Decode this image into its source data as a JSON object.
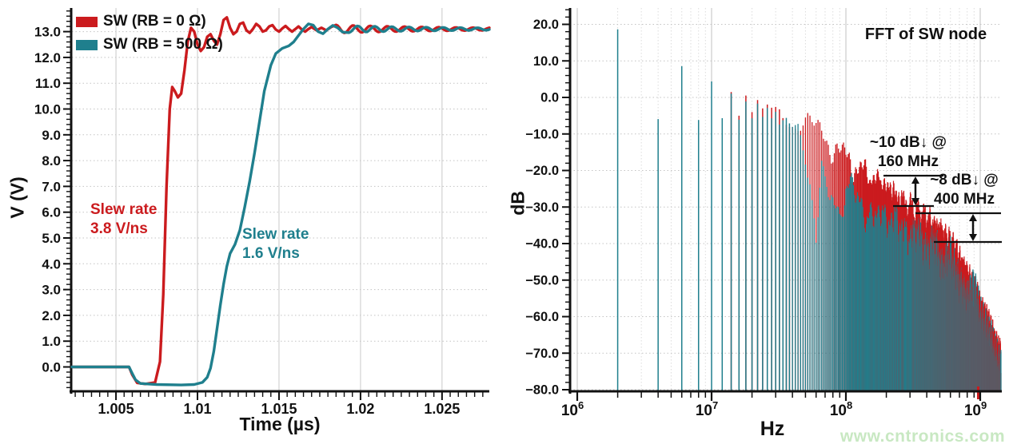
{
  "page": {
    "background": "#ffffff",
    "watermark": {
      "text": "www.cntronics.com",
      "color": "#c8e8c2"
    }
  },
  "chart_data": {
    "left": {
      "type": "line",
      "xlabel": "Time (µs)",
      "ylabel": "V (V)",
      "xlim": [
        1.0023,
        1.0279
      ],
      "ylim": [
        -0.95,
        13.9
      ],
      "x_ticks": [
        {
          "v": 1.005,
          "label": "1.005"
        },
        {
          "v": 1.01,
          "label": "1.01"
        },
        {
          "v": 1.015,
          "label": "1.015"
        },
        {
          "v": 1.02,
          "label": "1.02"
        },
        {
          "v": 1.025,
          "label": "1.025"
        }
      ],
      "y_ticks": [
        {
          "v": 0,
          "label": "0.0"
        },
        {
          "v": 1,
          "label": "1.0"
        },
        {
          "v": 2,
          "label": "2.0"
        },
        {
          "v": 3,
          "label": "3.0"
        },
        {
          "v": 4,
          "label": "4.0"
        },
        {
          "v": 5,
          "label": "5.0"
        },
        {
          "v": 6,
          "label": "6.0"
        },
        {
          "v": 7,
          "label": "7.0"
        },
        {
          "v": 8,
          "label": "8.0"
        },
        {
          "v": 9,
          "label": "9.0"
        },
        {
          "v": 10,
          "label": "10.0"
        },
        {
          "v": 11,
          "label": "11.0"
        },
        {
          "v": 12,
          "label": "12.0"
        },
        {
          "v": 13,
          "label": "13.0"
        }
      ],
      "grid": {
        "h_dotted_step_v": 1.0,
        "v_solid_at_major_ticks": true
      },
      "series": [
        {
          "name": "SW (RB = 0 Ω)",
          "color": "#cb1b1e",
          "slew_annotation": {
            "lines": [
              "Slew rate",
              "3.8 V/ns"
            ]
          },
          "points": [
            [
              1.0023,
              0
            ],
            [
              1.0058,
              0
            ],
            [
              1.006,
              -0.3
            ],
            [
              1.0063,
              -0.62
            ],
            [
              1.0068,
              -0.66
            ],
            [
              1.0074,
              -0.6
            ],
            [
              1.0077,
              0.2
            ],
            [
              1.0079,
              2.8
            ],
            [
              1.0081,
              7.0
            ],
            [
              1.0083,
              10.0
            ],
            [
              1.00845,
              10.85
            ],
            [
              1.0086,
              10.7
            ],
            [
              1.0088,
              10.45
            ],
            [
              1.009,
              10.6
            ],
            [
              1.0092,
              11.5
            ],
            [
              1.0094,
              12.6
            ],
            [
              1.0096,
              13.15
            ],
            [
              1.0098,
              13.0
            ],
            [
              1.01,
              12.5
            ],
            [
              1.0102,
              12.25
            ],
            [
              1.0104,
              12.4
            ],
            [
              1.0106,
              12.8
            ],
            [
              1.0108,
              12.9
            ],
            [
              1.011,
              12.65
            ],
            [
              1.0112,
              12.5
            ],
            [
              1.0114,
              12.9
            ],
            [
              1.0116,
              13.45
            ],
            [
              1.0118,
              13.55
            ],
            [
              1.012,
              13.15
            ],
            [
              1.0122,
              12.9
            ],
            [
              1.0124,
              13.0
            ],
            [
              1.0126,
              13.3
            ],
            [
              1.0128,
              13.35
            ],
            [
              1.013,
              13.05
            ],
            [
              1.0132,
              12.95
            ],
            [
              1.0134,
              13.1
            ],
            [
              1.0136,
              13.3
            ],
            [
              1.0138,
              13.2
            ],
            [
              1.014,
              13.0
            ],
            [
              1.0142,
              13.05
            ],
            [
              1.0144,
              13.2
            ],
            [
              1.0146,
              13.25
            ],
            [
              1.0148,
              13.08
            ],
            [
              1.015,
              13.0
            ],
            [
              1.0152,
              13.12
            ],
            [
              1.0154,
              13.22
            ],
            [
              1.0156,
              13.1
            ],
            [
              1.0158,
              13.0
            ],
            [
              1.016,
              13.1
            ],
            [
              1.0162,
              13.2
            ],
            [
              1.0164,
              13.08
            ],
            [
              1.0166,
              13.0
            ],
            [
              1.0168,
              13.1
            ],
            [
              1.017,
              13.18
            ],
            [
              1.0173,
              13.05
            ],
            [
              1.0176,
              13.15
            ],
            [
              1.0179,
              13.05
            ],
            [
              1.0182,
              13.18
            ],
            [
              1.0185,
              13.26
            ]
          ],
          "ring": {
            "t0": 1.0185,
            "settle": 13.1,
            "amp": 0.16,
            "period_us": 0.00105,
            "phase_deg": 0,
            "tau_us": 0.008
          }
        },
        {
          "name": "SW (RB = 500 Ω)",
          "color": "#1f7f8d",
          "slew_annotation": {
            "lines": [
              "Slew rate",
              "1.6 V/ns"
            ]
          },
          "points": [
            [
              1.0023,
              0
            ],
            [
              1.0058,
              0
            ],
            [
              1.006,
              -0.25
            ],
            [
              1.0062,
              -0.5
            ],
            [
              1.0065,
              -0.64
            ],
            [
              1.0075,
              -0.68
            ],
            [
              1.009,
              -0.7
            ],
            [
              1.0098,
              -0.68
            ],
            [
              1.0103,
              -0.6
            ],
            [
              1.0106,
              -0.4
            ],
            [
              1.0108,
              -0.05
            ],
            [
              1.011,
              0.6
            ],
            [
              1.0112,
              1.5
            ],
            [
              1.0114,
              2.4
            ],
            [
              1.0116,
              3.2
            ],
            [
              1.0118,
              3.9
            ],
            [
              1.012,
              4.4
            ],
            [
              1.0123,
              4.75
            ],
            [
              1.0126,
              5.3
            ],
            [
              1.0129,
              6.2
            ],
            [
              1.0132,
              7.2
            ],
            [
              1.0135,
              8.3
            ],
            [
              1.0138,
              9.5
            ],
            [
              1.0141,
              10.7
            ],
            [
              1.0145,
              11.7
            ],
            [
              1.0148,
              12.15
            ],
            [
              1.0152,
              12.35
            ],
            [
              1.0156,
              12.45
            ],
            [
              1.0159,
              12.6
            ],
            [
              1.0162,
              12.85
            ],
            [
              1.0165,
              13.1
            ],
            [
              1.0168,
              13.3
            ],
            [
              1.0171,
              13.25
            ],
            [
              1.0174,
              13.0
            ],
            [
              1.0177,
              12.92
            ],
            [
              1.018,
              13.1
            ],
            [
              1.0183,
              13.24
            ],
            [
              1.0186,
              13.15
            ],
            [
              1.0189,
              12.98
            ],
            [
              1.0193,
              12.96
            ]
          ],
          "ring": {
            "t0": 1.0193,
            "settle": 13.1,
            "amp": 0.13,
            "period_us": 0.00105,
            "phase_deg": 180,
            "tau_us": 0.008
          }
        }
      ]
    },
    "right": {
      "type": "bar",
      "title": "FFT of SW node",
      "xlabel": "Hz",
      "ylabel": "dB",
      "x_log_range_hz": [
        880000,
        1450000000
      ],
      "ylim": [
        -80,
        20
      ],
      "fundamental_hz": 2000000,
      "even_harmonic_db": -5.7,
      "x_ticks": [
        {
          "base": "10",
          "exp": "6"
        },
        {
          "base": "10",
          "exp": "7"
        },
        {
          "base": "10",
          "exp": "8"
        },
        {
          "base": "10",
          "exp": "9"
        }
      ],
      "y_ticks": [
        {
          "v": 20,
          "label": "20.0"
        },
        {
          "v": 10,
          "label": "10.0"
        },
        {
          "v": 0,
          "label": "0.0"
        },
        {
          "v": -10,
          "label": "−10.0"
        },
        {
          "v": -20,
          "label": "−20.0"
        },
        {
          "v": -30,
          "label": "−30.0"
        },
        {
          "v": -40,
          "label": "−40.0"
        },
        {
          "v": -50,
          "label": "−50.0"
        },
        {
          "v": -60,
          "label": "−60.0"
        },
        {
          "v": -70,
          "label": "−70.0"
        },
        {
          "v": -80,
          "label": "−80.0"
        }
      ],
      "series": [
        {
          "name": "SW (RB = 0 Ω)",
          "color": "#cb1b1e",
          "envelope_mhz_db": [
            [
              14,
              1.5
            ],
            [
              18,
              0.2
            ],
            [
              26,
              -1.8
            ],
            [
              40,
              -4.5
            ],
            [
              60,
              -8
            ],
            [
              80,
              -12
            ],
            [
              100,
              -16
            ],
            [
              130,
              -19
            ],
            [
              160,
              -21
            ],
            [
              200,
              -23
            ],
            [
              260,
              -27
            ],
            [
              320,
              -29.5
            ],
            [
              400,
              -32
            ],
            [
              500,
              -35
            ],
            [
              640,
              -40
            ],
            [
              800,
              -47
            ],
            [
              1000,
              -55
            ],
            [
              1200,
              -62
            ],
            [
              1450,
              -70
            ]
          ]
        },
        {
          "name": "SW (RB = 500 Ω)",
          "color": "#1f7f8d",
          "envelope_mhz_db": [
            [
              2,
              18.5
            ],
            [
              6,
              9
            ],
            [
              10,
              4.5
            ],
            [
              14,
              1.2
            ],
            [
              18,
              -0.8
            ],
            [
              26,
              -3
            ],
            [
              34,
              -5
            ],
            [
              44,
              -8
            ],
            [
              54,
              -18
            ],
            [
              60,
              -38
            ],
            [
              66,
              -20
            ],
            [
              80,
              -27
            ],
            [
              90,
              -31
            ],
            [
              100,
              -23.5
            ],
            [
              115,
              -24
            ],
            [
              130,
              -27
            ],
            [
              145,
              -33
            ],
            [
              160,
              -31
            ],
            [
              180,
              -29
            ],
            [
              200,
              -33
            ],
            [
              230,
              -31
            ],
            [
              260,
              -34
            ],
            [
              300,
              -37
            ],
            [
              340,
              -34
            ],
            [
              400,
              -40
            ],
            [
              460,
              -37
            ],
            [
              520,
              -44
            ],
            [
              600,
              -41
            ],
            [
              700,
              -48
            ],
            [
              800,
              -52
            ],
            [
              900,
              -49
            ],
            [
              1000,
              -57
            ],
            [
              1100,
              -60
            ],
            [
              1200,
              -63
            ],
            [
              1300,
              -68
            ],
            [
              1450,
              -72
            ]
          ]
        }
      ],
      "annotations": [
        {
          "lines": [
            "~10 dB↓ @",
            "160 MHz"
          ],
          "red_db": -21,
          "teal_db": -31,
          "freq": "160 MHz"
        },
        {
          "lines": [
            "~8 dB↓ @",
            "400 MHz"
          ],
          "red_db": -32,
          "teal_db": -40,
          "freq": "400 MHz"
        }
      ]
    }
  }
}
